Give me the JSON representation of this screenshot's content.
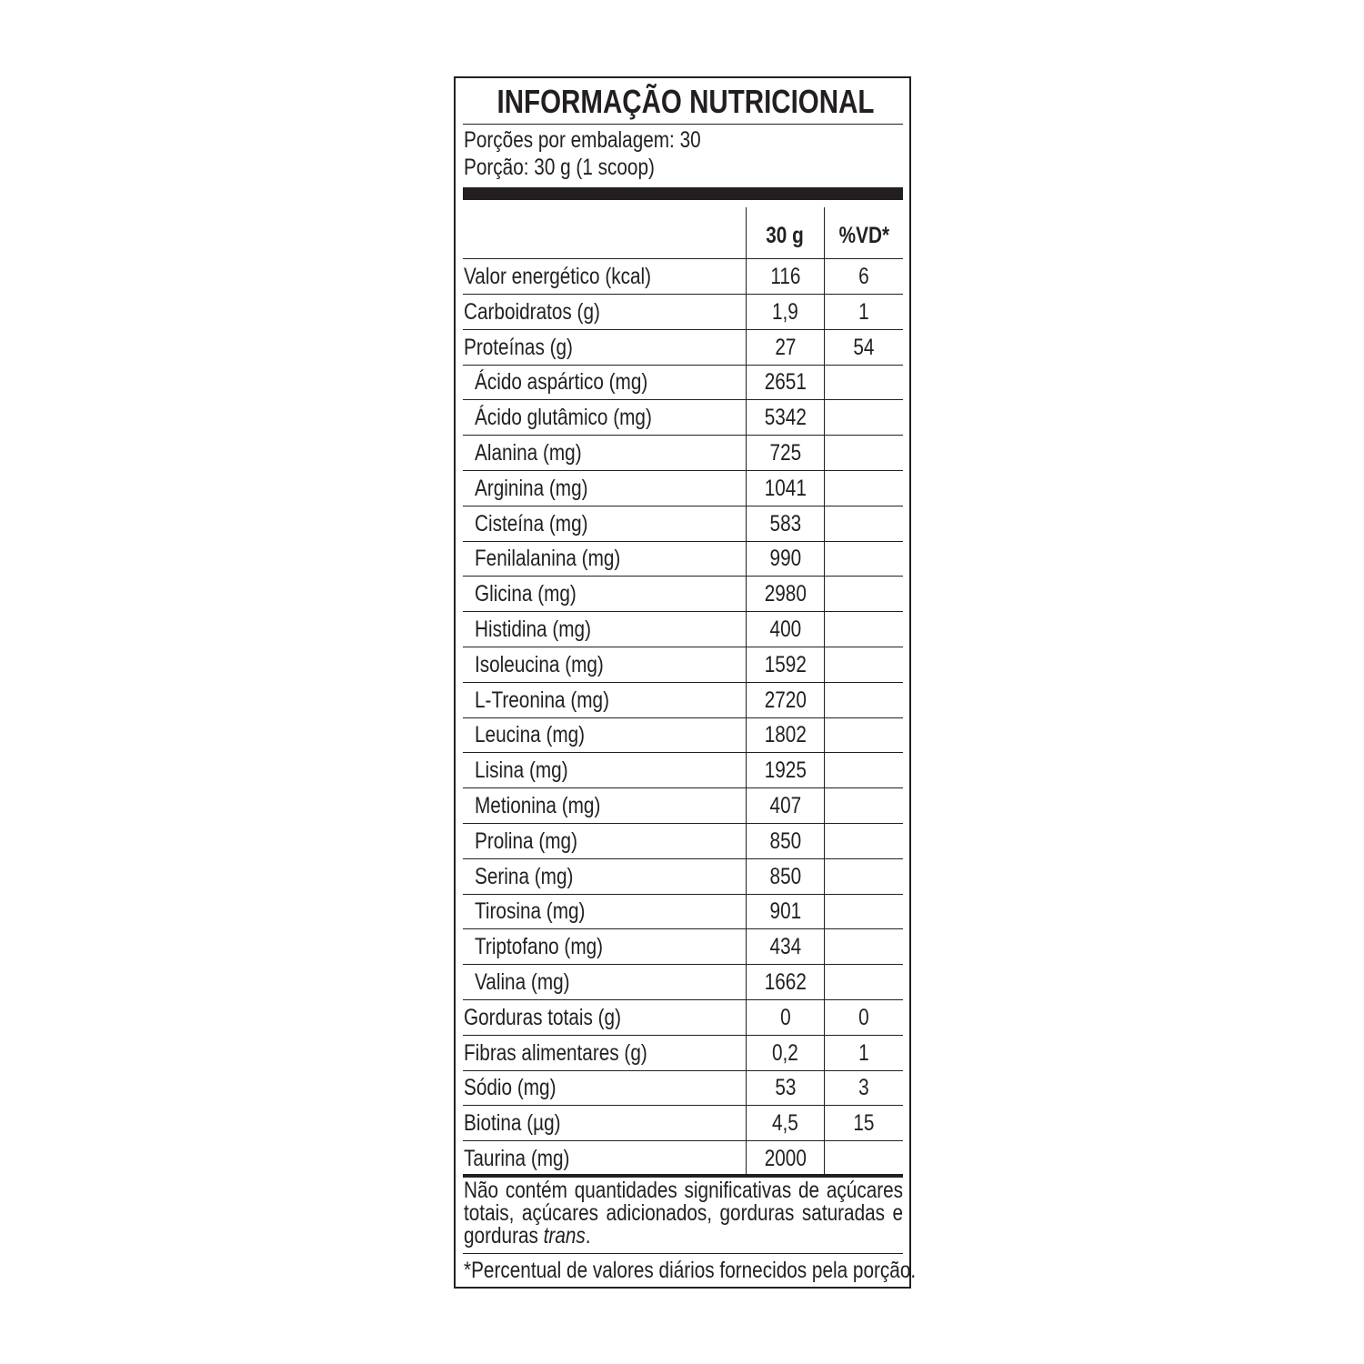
{
  "title": "INFORMAÇÃO NUTRICIONAL",
  "servings_per_package": "Porções por embalagem: 30",
  "serving_size": "Porção: 30 g (1 scoop)",
  "columns": {
    "amount": "30 g",
    "dv": "%VD*"
  },
  "rows": [
    {
      "label": "Valor energético (kcal)",
      "amount": "116",
      "dv": "6",
      "sub": false
    },
    {
      "label": "Carboidratos (g)",
      "amount": "1,9",
      "dv": "1",
      "sub": false
    },
    {
      "label": "Proteínas (g)",
      "amount": "27",
      "dv": "54",
      "sub": false
    },
    {
      "label": "Ácido aspártico (mg)",
      "amount": "2651",
      "dv": "",
      "sub": true
    },
    {
      "label": "Ácido glutâmico (mg)",
      "amount": "5342",
      "dv": "",
      "sub": true
    },
    {
      "label": "Alanina (mg)",
      "amount": "725",
      "dv": "",
      "sub": true
    },
    {
      "label": "Arginina (mg)",
      "amount": "1041",
      "dv": "",
      "sub": true
    },
    {
      "label": "Cisteína (mg)",
      "amount": "583",
      "dv": "",
      "sub": true
    },
    {
      "label": "Fenilalanina (mg)",
      "amount": "990",
      "dv": "",
      "sub": true
    },
    {
      "label": "Glicina (mg)",
      "amount": "2980",
      "dv": "",
      "sub": true
    },
    {
      "label": "Histidina (mg)",
      "amount": "400",
      "dv": "",
      "sub": true
    },
    {
      "label": "Isoleucina (mg)",
      "amount": "1592",
      "dv": "",
      "sub": true
    },
    {
      "label": "L-Treonina (mg)",
      "amount": "2720",
      "dv": "",
      "sub": true
    },
    {
      "label": "Leucina (mg)",
      "amount": "1802",
      "dv": "",
      "sub": true
    },
    {
      "label": "Lisina (mg)",
      "amount": "1925",
      "dv": "",
      "sub": true
    },
    {
      "label": "Metionina (mg)",
      "amount": "407",
      "dv": "",
      "sub": true
    },
    {
      "label": "Prolina (mg)",
      "amount": "850",
      "dv": "",
      "sub": true
    },
    {
      "label": "Serina (mg)",
      "amount": "850",
      "dv": "",
      "sub": true
    },
    {
      "label": "Tirosina (mg)",
      "amount": "901",
      "dv": "",
      "sub": true
    },
    {
      "label": "Triptofano (mg)",
      "amount": "434",
      "dv": "",
      "sub": true
    },
    {
      "label": "Valina (mg)",
      "amount": "1662",
      "dv": "",
      "sub": true
    },
    {
      "label": "Gorduras totais (g)",
      "amount": "0",
      "dv": "0",
      "sub": false
    },
    {
      "label": "Fibras alimentares (g)",
      "amount": "0,2",
      "dv": "1",
      "sub": false
    },
    {
      "label": "Sódio (mg)",
      "amount": "53",
      "dv": "3",
      "sub": false
    },
    {
      "label": "Biotina (µg)",
      "amount": "4,5",
      "dv": "15",
      "sub": false
    },
    {
      "label": "Taurina (mg)",
      "amount": "2000",
      "dv": "",
      "sub": false
    }
  ],
  "footnote": {
    "text": "Não contém quantidades significativas de açúcares totais, açúcares adicionados, gorduras saturadas e gorduras ",
    "italic": "trans",
    "end": "."
  },
  "dv_note": "*Percentual de valores diários fornecidos pela porção."
}
